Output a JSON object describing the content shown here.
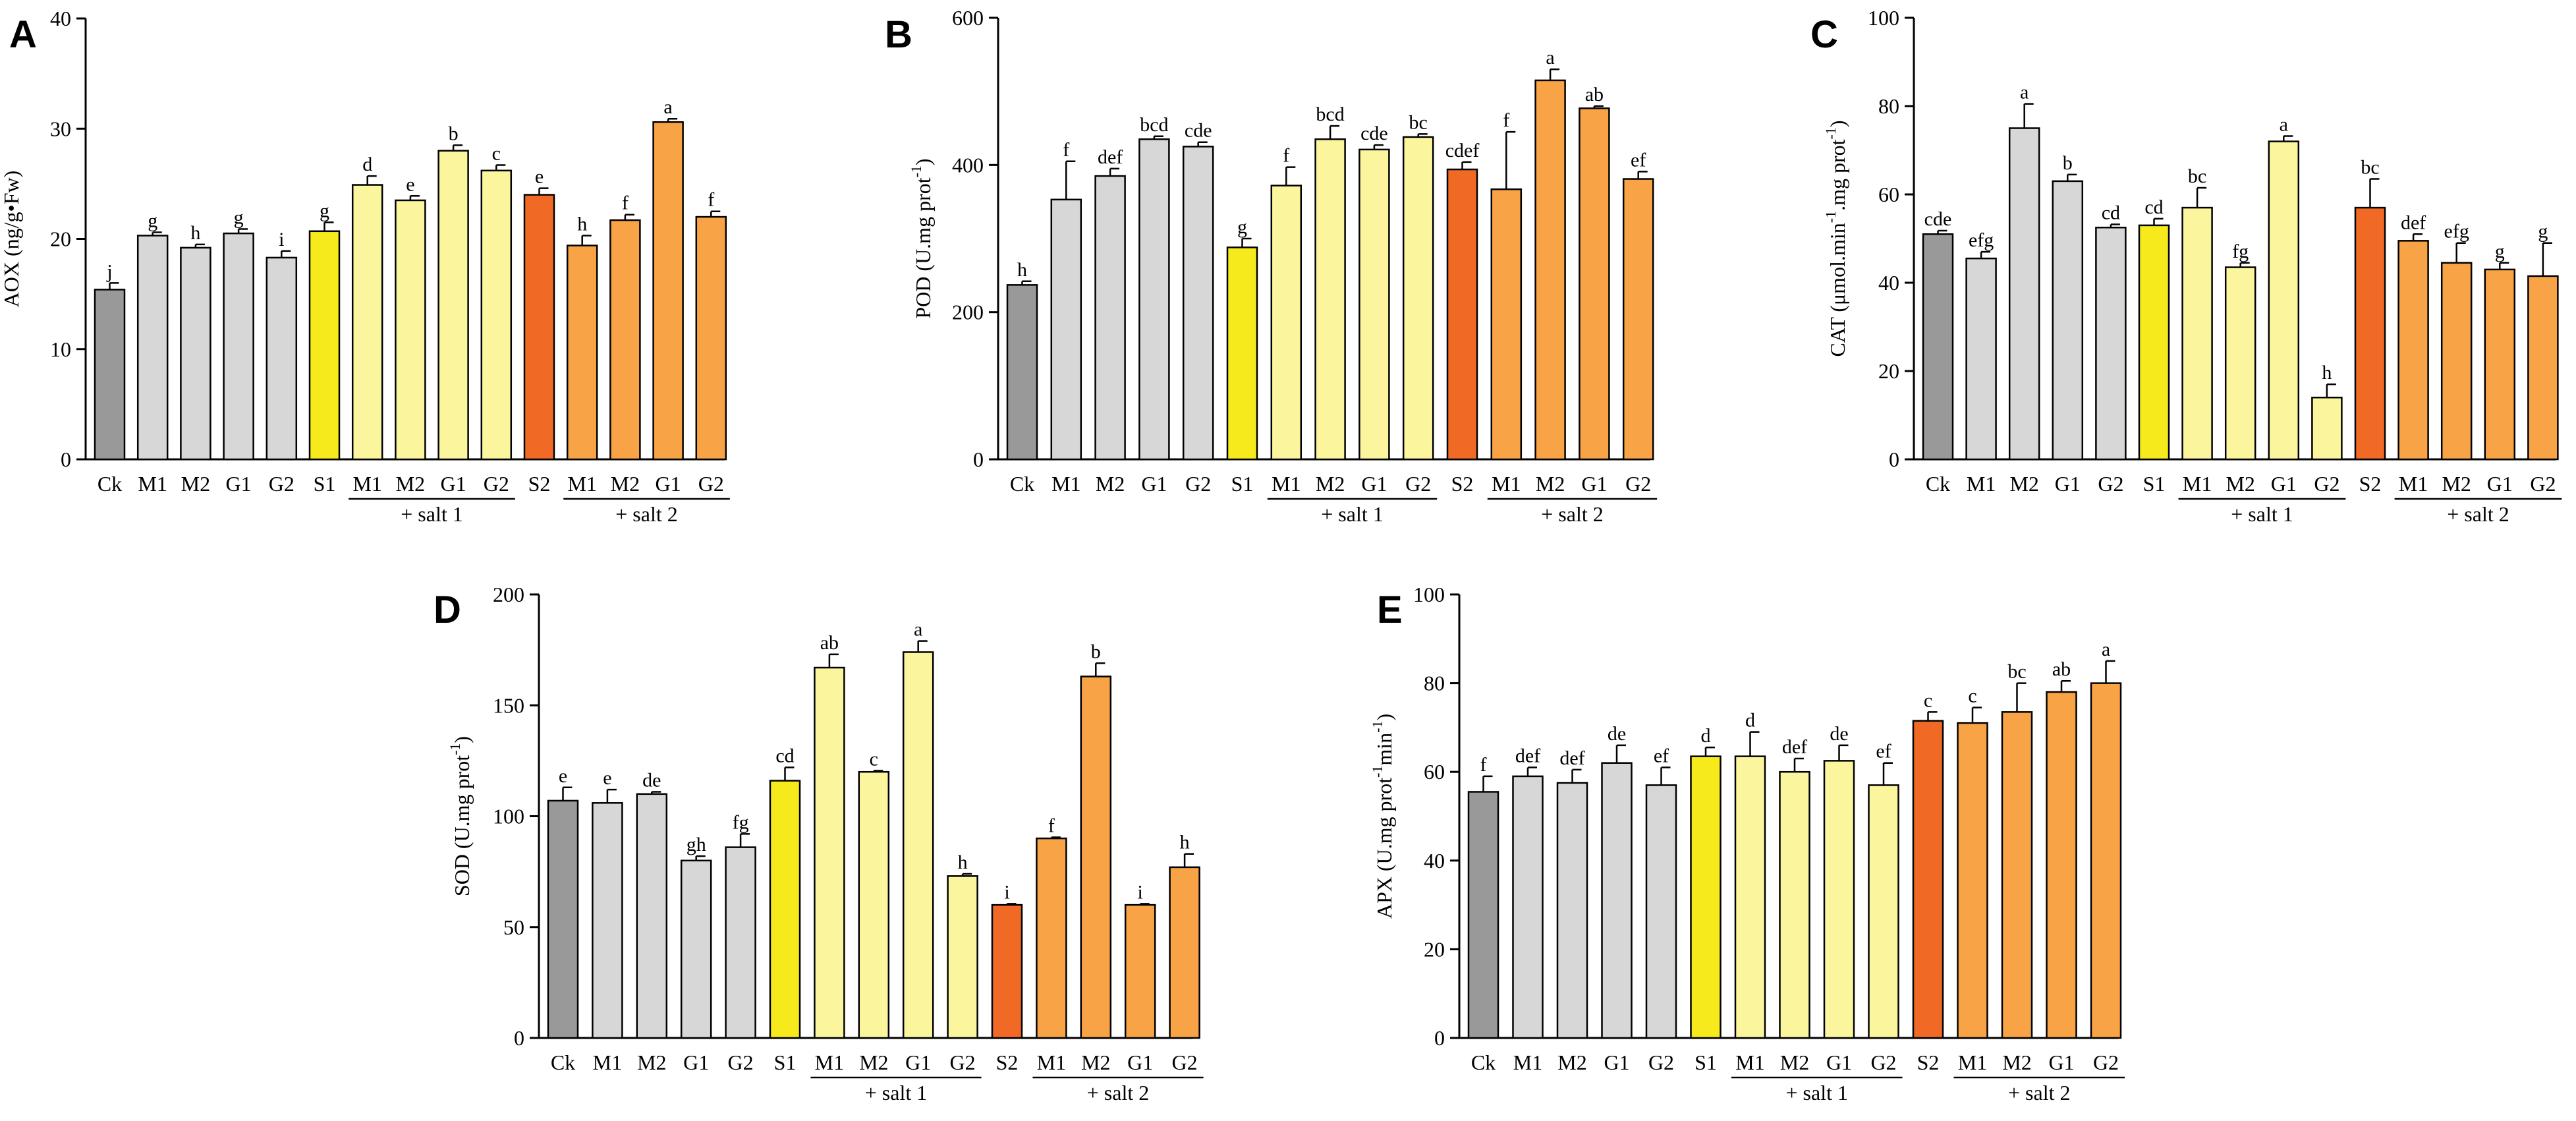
{
  "figure": {
    "panel_letters": [
      "A",
      "B",
      "C",
      "D",
      "E"
    ],
    "categories": [
      "Ck",
      "M1",
      "M2",
      "G1",
      "G2",
      "S1",
      "M1",
      "M2",
      "G1",
      "G2",
      "S2",
      "M1",
      "M2",
      "G1",
      "G2"
    ],
    "group_labels": [
      "+ salt 1",
      "+ salt 2"
    ],
    "colors": {
      "ck": "#999999",
      "control": "#d7d7d7",
      "s1": "#f7ea1c",
      "salt1": "#fbf59e",
      "s2": "#f06a26",
      "salt2": "#f8a345"
    },
    "bar_colors": [
      "ck",
      "control",
      "control",
      "control",
      "control",
      "s1",
      "salt1",
      "salt1",
      "salt1",
      "salt1",
      "s2",
      "salt2",
      "salt2",
      "salt2",
      "salt2"
    ]
  },
  "chart_data": [
    {
      "type": "bar",
      "panel": "A",
      "ylabel": "AOX (ng/g•Fw)",
      "ylim": [
        0,
        40
      ],
      "yticks": [
        0,
        10,
        20,
        30,
        40
      ],
      "values": [
        15.4,
        20.3,
        19.2,
        20.5,
        18.3,
        20.7,
        24.9,
        23.5,
        28.0,
        26.2,
        24.0,
        19.4,
        21.7,
        30.6,
        22.0
      ],
      "errors": [
        0.6,
        0.3,
        0.3,
        0.4,
        0.6,
        0.8,
        0.8,
        0.4,
        0.5,
        0.5,
        0.6,
        0.9,
        0.5,
        0.3,
        0.5
      ],
      "letters": [
        "j",
        "g",
        "h",
        "g",
        "i",
        "g",
        "d",
        "e",
        "b",
        "c",
        "e",
        "h",
        "f",
        "a",
        "f"
      ]
    },
    {
      "type": "bar",
      "panel": "B",
      "ylabel": "POD (U.mg prot-1)",
      "ylabel_main": "POD (U.mg prot",
      "ylabel_sup": "-1",
      "ylabel_end": ")",
      "ylim": [
        0,
        600
      ],
      "yticks": [
        0,
        200,
        400,
        600
      ],
      "values": [
        237,
        353,
        385,
        435,
        425,
        288,
        372,
        435,
        421,
        438,
        394,
        367,
        515,
        477,
        381
      ],
      "errors": [
        5,
        52,
        10,
        4,
        6,
        12,
        25,
        18,
        6,
        4,
        10,
        78,
        15,
        3,
        10
      ],
      "letters": [
        "h",
        "f",
        "def",
        "bcd",
        "cde",
        "g",
        "f",
        "bcd",
        "cde",
        "bc",
        "cdef",
        "f",
        "a",
        "ab",
        "ef"
      ]
    },
    {
      "type": "bar",
      "panel": "C",
      "ylabel": "CAT (μmol.min-1.mg prot-1)",
      "ylabel_main": "CAT (μmol.min",
      "ylabel_sup": "-1",
      "ylabel_mid": ".mg prot",
      "ylabel_sup2": "-1",
      "ylabel_end": ")",
      "ylim": [
        0,
        100
      ],
      "yticks": [
        0,
        20,
        40,
        60,
        80,
        100
      ],
      "values": [
        51,
        45.5,
        75,
        63,
        52.5,
        53,
        57,
        43.5,
        72,
        14,
        57,
        49.5,
        44.5,
        43,
        41.5
      ],
      "errors": [
        0.8,
        1.5,
        5.5,
        1.5,
        0.7,
        1.5,
        4.5,
        1.0,
        1.2,
        3.0,
        6.5,
        1.5,
        4.5,
        1.5,
        7.5
      ],
      "letters": [
        "cde",
        "efg",
        "a",
        "b",
        "cd",
        "cd",
        "bc",
        "fg",
        "a",
        "h",
        "bc",
        "def",
        "efg",
        "g",
        "g"
      ]
    },
    {
      "type": "bar",
      "panel": "D",
      "ylabel": "SOD (U.mg prot-1)",
      "ylabel_main": "SOD (U.mg prot",
      "ylabel_sup": "-1",
      "ylabel_end": ")",
      "ylim": [
        0,
        200
      ],
      "yticks": [
        0,
        50,
        100,
        150,
        200
      ],
      "values": [
        107,
        106,
        110,
        80,
        86,
        116,
        167,
        120,
        174,
        73,
        60,
        90,
        163,
        60,
        77
      ],
      "errors": [
        6,
        6,
        1,
        2,
        6,
        6,
        6,
        0.5,
        5,
        1,
        0.5,
        0.5,
        6,
        0.5,
        6
      ],
      "letters": [
        "e",
        "e",
        "de",
        "gh",
        "fg",
        "cd",
        "ab",
        "c",
        "a",
        "h",
        "i",
        "f",
        "b",
        "i",
        "h"
      ]
    },
    {
      "type": "bar",
      "panel": "E",
      "ylabel": "APX (U.mg prot-1min-1)",
      "ylabel_main": "APX (U.mg prot",
      "ylabel_sup": "-1",
      "ylabel_mid": "min",
      "ylabel_sup2": "-1",
      "ylabel_end": ")",
      "ylim": [
        0,
        100
      ],
      "yticks": [
        0,
        20,
        40,
        60,
        80,
        100
      ],
      "values": [
        55.5,
        59,
        57.5,
        62,
        57,
        63.5,
        63.5,
        60,
        62.5,
        57,
        71.5,
        71,
        73.5,
        78,
        80
      ],
      "errors": [
        3.5,
        2,
        3,
        4,
        4,
        2,
        5.5,
        3,
        3.5,
        5,
        2,
        3.5,
        6.5,
        2.5,
        5
      ],
      "letters": [
        "f",
        "def",
        "def",
        "de",
        "ef",
        "d",
        "d",
        "def",
        "de",
        "ef",
        "c",
        "c",
        "bc",
        "ab",
        "a"
      ]
    }
  ]
}
